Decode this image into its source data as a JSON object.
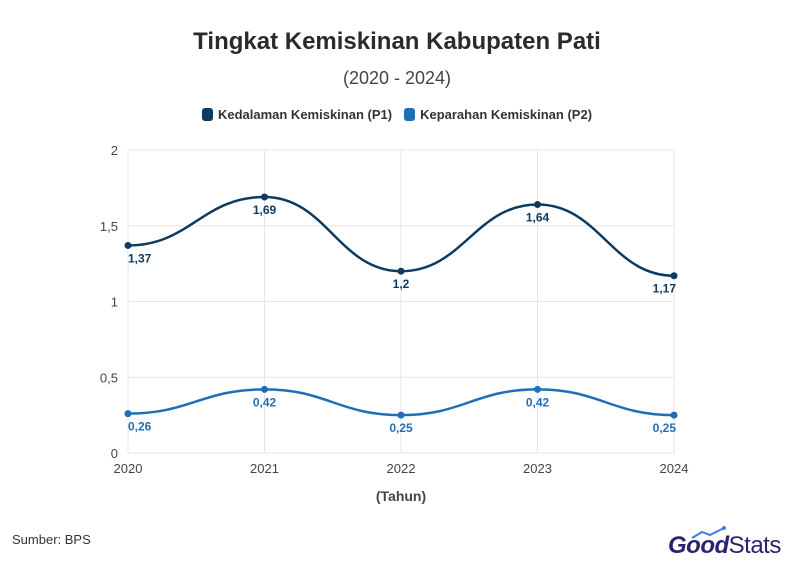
{
  "header": {
    "title": "Tingkat Kemiskinan Kabupaten Pati",
    "subtitle": "(2020 - 2024)"
  },
  "footer": {
    "source": "Sumber: BPS",
    "logo_good": "Good",
    "logo_stats": "Stats"
  },
  "chart_data": {
    "type": "line",
    "title": "Tingkat Kemiskinan Kabupaten Pati",
    "subtitle": "(2020 - 2024)",
    "xlabel": "(Tahun)",
    "ylabel": "",
    "x": [
      "2020",
      "2021",
      "2022",
      "2023",
      "2024"
    ],
    "ylim": [
      0,
      2
    ],
    "yticks": [
      0,
      0.5,
      1,
      1.5,
      2
    ],
    "ytick_labels": [
      "0",
      "0,5",
      "1",
      "1,5",
      "2"
    ],
    "grid": true,
    "legend_position": "top-center",
    "smooth": true,
    "series": [
      {
        "name": "Kedalaman Kemiskinan (P1)",
        "color": "#0d3b61",
        "values": [
          1.37,
          1.69,
          1.2,
          1.64,
          1.17
        ],
        "labels": [
          "1,37",
          "1,69",
          "1,2",
          "1,64",
          "1,17"
        ]
      },
      {
        "name": "Keparahan Kemiskinan (P2)",
        "color": "#1f6fb8",
        "values": [
          0.26,
          0.42,
          0.25,
          0.42,
          0.25
        ],
        "labels": [
          "0,26",
          "0,42",
          "0,25",
          "0,42",
          "0,25"
        ]
      }
    ]
  }
}
